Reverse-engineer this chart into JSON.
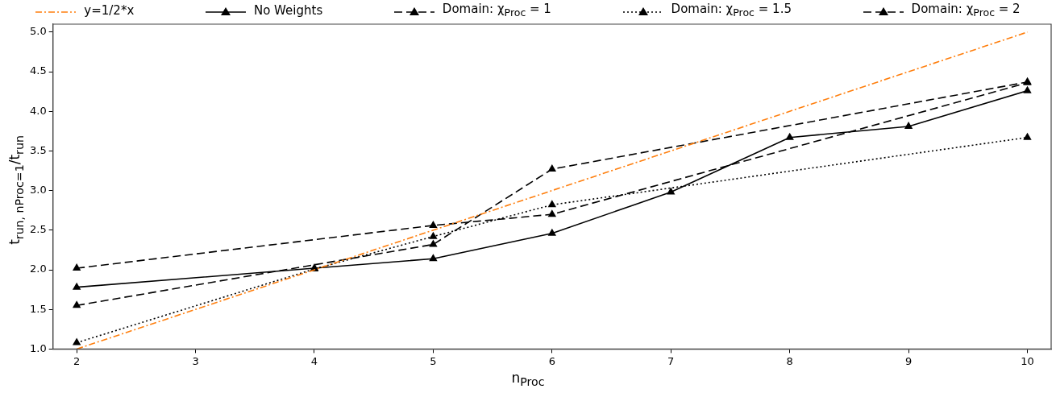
{
  "chart_data": {
    "type": "line",
    "xlabel": "n$_{Proc}$",
    "ylabel": "t$_{run, nProc=1}$/t$_{run}$",
    "xlim": [
      1.8,
      10.2
    ],
    "xticks": [
      2,
      3,
      4,
      5,
      6,
      7,
      8,
      9,
      10
    ],
    "ylim": [
      1,
      5.1
    ],
    "yticks": [
      {
        "value": 1,
        "label": "1.0"
      },
      {
        "value": 1.5,
        "label": "1.5"
      },
      {
        "value": 2,
        "label": "2.0"
      },
      {
        "value": 2.5,
        "label": "2.5"
      },
      {
        "value": 3,
        "label": "3.0"
      },
      {
        "value": 3.5,
        "label": "3.5"
      },
      {
        "value": 4,
        "label": "4.0"
      },
      {
        "value": 4.5,
        "label": "4.5"
      },
      {
        "value": 5,
        "label": "5.0"
      }
    ],
    "grid": false,
    "legend": "top",
    "series": [
      {
        "name": "y=1/2*x",
        "color": "#ff7f0e",
        "line_style": "dashdot",
        "marker": "none",
        "x": [
          2,
          10
        ],
        "values": [
          1,
          5
        ]
      },
      {
        "name": "No Weights",
        "color": "#000000",
        "line_style": "solid",
        "marker": "triangle",
        "x": [
          2,
          4,
          5,
          6,
          7,
          8,
          9,
          10
        ],
        "values": [
          1.78,
          2.02,
          2.14,
          2.46,
          2.98,
          3.67,
          3.81,
          4.26
        ]
      },
      {
        "name": "Domain: χ$_{Proc}$ = 1",
        "color": "#000000",
        "line_style": "dashed",
        "marker": "triangle",
        "x": [
          2,
          5,
          6,
          10
        ],
        "values": [
          2.02,
          2.56,
          2.7,
          4.36
        ]
      },
      {
        "name": "Domain: χ$_{Proc}$ = 1.5",
        "color": "#000000",
        "line_style": "dotted",
        "marker": "triangle",
        "x": [
          2,
          4,
          5,
          6,
          10
        ],
        "values": [
          1.08,
          2.01,
          2.42,
          2.82,
          3.67
        ]
      },
      {
        "name": "Domain: χ$_{Proc}$ = 2",
        "color": "#000000",
        "line_style": "dashed",
        "marker": "triangle",
        "x": [
          2,
          5,
          6,
          10
        ],
        "values": [
          1.55,
          2.32,
          3.27,
          4.37
        ]
      }
    ]
  }
}
